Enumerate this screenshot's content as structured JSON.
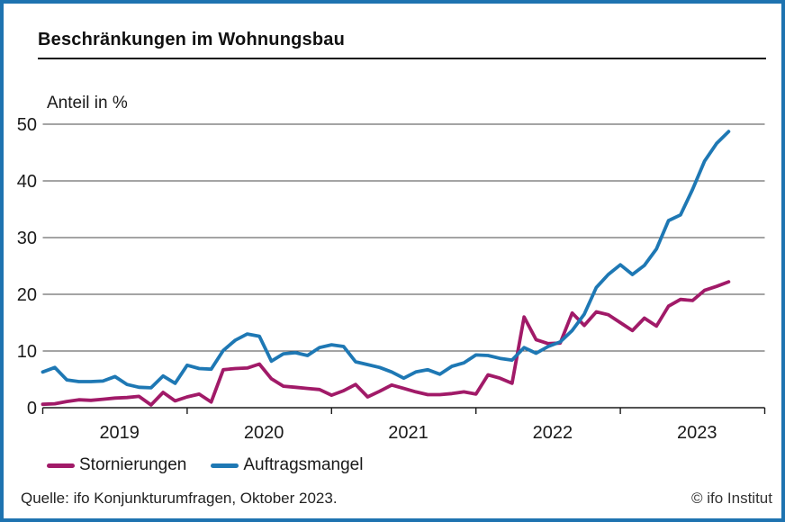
{
  "header": {
    "title": "Beschränkungen im Wohnungsbau"
  },
  "chart": {
    "y_axis_unit_label": "Anteil in %"
  },
  "legend": [
    {
      "label": "Stornierungen",
      "color": "#a11a68"
    },
    {
      "label": "Auftragsmangel",
      "color": "#1e78b4"
    }
  ],
  "footer": {
    "source": "Quelle: ifo Konjunkturumfragen, Oktober 2023.",
    "copyright": "© ifo Institut"
  },
  "colors": {
    "frame_border": "#1e73b0",
    "gridline": "#4a4a4a",
    "axis": "#1a1a1a",
    "stornierungen_line": "#a11a68",
    "auftragsmangel_line": "#1e78b4"
  },
  "chart_data": {
    "type": "line",
    "title": "Beschränkungen im Wohnungsbau",
    "ylabel": "Anteil in %",
    "ylim": [
      0,
      50
    ],
    "yticks": [
      0,
      10,
      20,
      30,
      40,
      50
    ],
    "grid": "horizontal",
    "legend_position": "bottom",
    "x_frequency": "monthly",
    "x_start_month": "2019-01",
    "x_end_month": "2023-10",
    "x_year_labels": [
      "2019",
      "2020",
      "2021",
      "2022",
      "2023"
    ],
    "series": [
      {
        "name": "Stornierungen",
        "color": "#a11a68",
        "values": [
          0.6,
          0.7,
          1.1,
          1.4,
          1.3,
          1.5,
          1.7,
          1.8,
          2.0,
          0.5,
          2.7,
          1.2,
          1.9,
          2.4,
          1.0,
          6.7,
          6.9,
          7.0,
          7.7,
          5.1,
          3.8,
          3.6,
          3.4,
          3.2,
          2.2,
          3.0,
          4.1,
          1.9,
          2.9,
          4.0,
          3.4,
          2.8,
          2.3,
          2.3,
          2.5,
          2.8,
          2.4,
          5.8,
          5.2,
          4.3,
          16.0,
          12.0,
          11.3,
          11.4,
          16.7,
          14.5,
          16.9,
          16.4,
          15.0,
          13.6,
          15.8,
          14.4,
          17.9,
          19.1,
          18.9,
          20.7,
          21.4,
          22.2
        ]
      },
      {
        "name": "Auftragsmangel",
        "color": "#1e78b4",
        "values": [
          6.3,
          7.1,
          4.9,
          4.6,
          4.6,
          4.7,
          5.5,
          4.1,
          3.6,
          3.5,
          5.6,
          4.3,
          7.5,
          6.9,
          6.8,
          10.1,
          11.9,
          13.0,
          12.6,
          8.2,
          9.5,
          9.7,
          9.2,
          10.6,
          11.1,
          10.8,
          8.1,
          7.6,
          7.1,
          6.3,
          5.2,
          6.3,
          6.7,
          5.9,
          7.3,
          7.9,
          9.3,
          9.2,
          8.7,
          8.4,
          10.6,
          9.6,
          10.8,
          11.6,
          13.6,
          16.5,
          21.2,
          23.5,
          25.2,
          23.5,
          25.1,
          28.0,
          33.0,
          34.0,
          38.5,
          43.5,
          46.6,
          48.7
        ]
      }
    ]
  }
}
